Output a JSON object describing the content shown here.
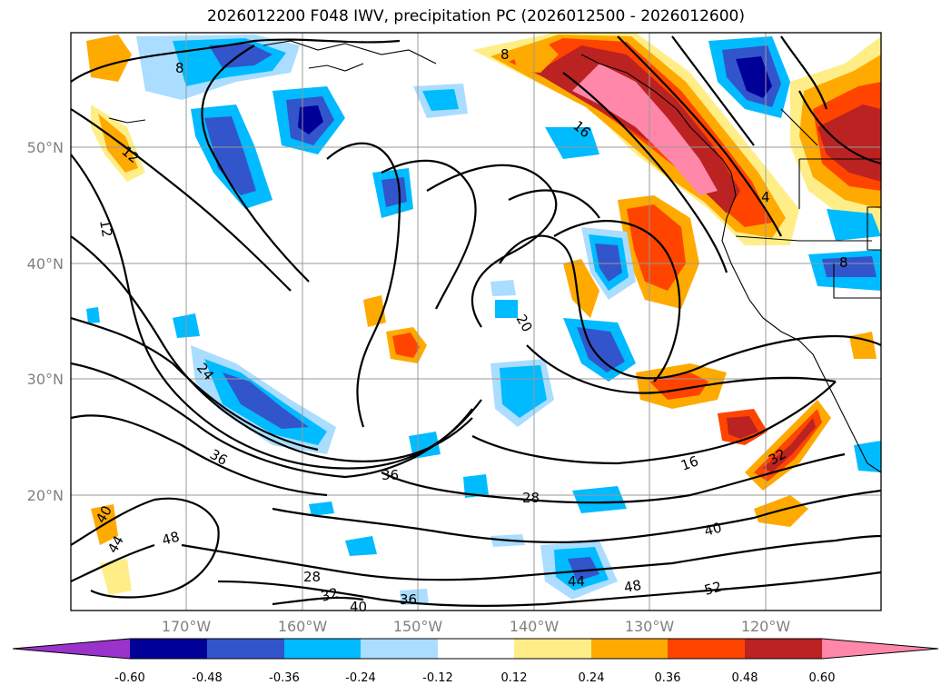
{
  "title": "2026012200 F048 IWV, precipitation PC (2026012500 - 2026012600)",
  "map": {
    "lat_labels": [
      "50°N",
      "40°N",
      "30°N",
      "20°N"
    ],
    "lon_labels": [
      "170°W",
      "160°W",
      "150°W",
      "140°W",
      "130°W",
      "120°W"
    ],
    "contour_labels": [
      "8",
      "8",
      "12",
      "12",
      "16",
      "16",
      "20",
      "24",
      "28",
      "28",
      "32",
      "32",
      "36",
      "36",
      "36",
      "40",
      "40",
      "40",
      "44",
      "44",
      "48",
      "48",
      "52",
      "8",
      "4"
    ]
  },
  "colorbar": {
    "tick_labels": [
      "-0.60",
      "-0.48",
      "-0.36",
      "-0.24",
      "-0.12",
      "0.12",
      "0.24",
      "0.36",
      "0.48",
      "0.60"
    ],
    "colors": [
      "#9933cc",
      "#000099",
      "#3355cc",
      "#00bbff",
      "#aaddff",
      "#ffffff",
      "#ffee88",
      "#ffaa00",
      "#ff4400",
      "#bb2222",
      "#ff88aa"
    ]
  }
}
